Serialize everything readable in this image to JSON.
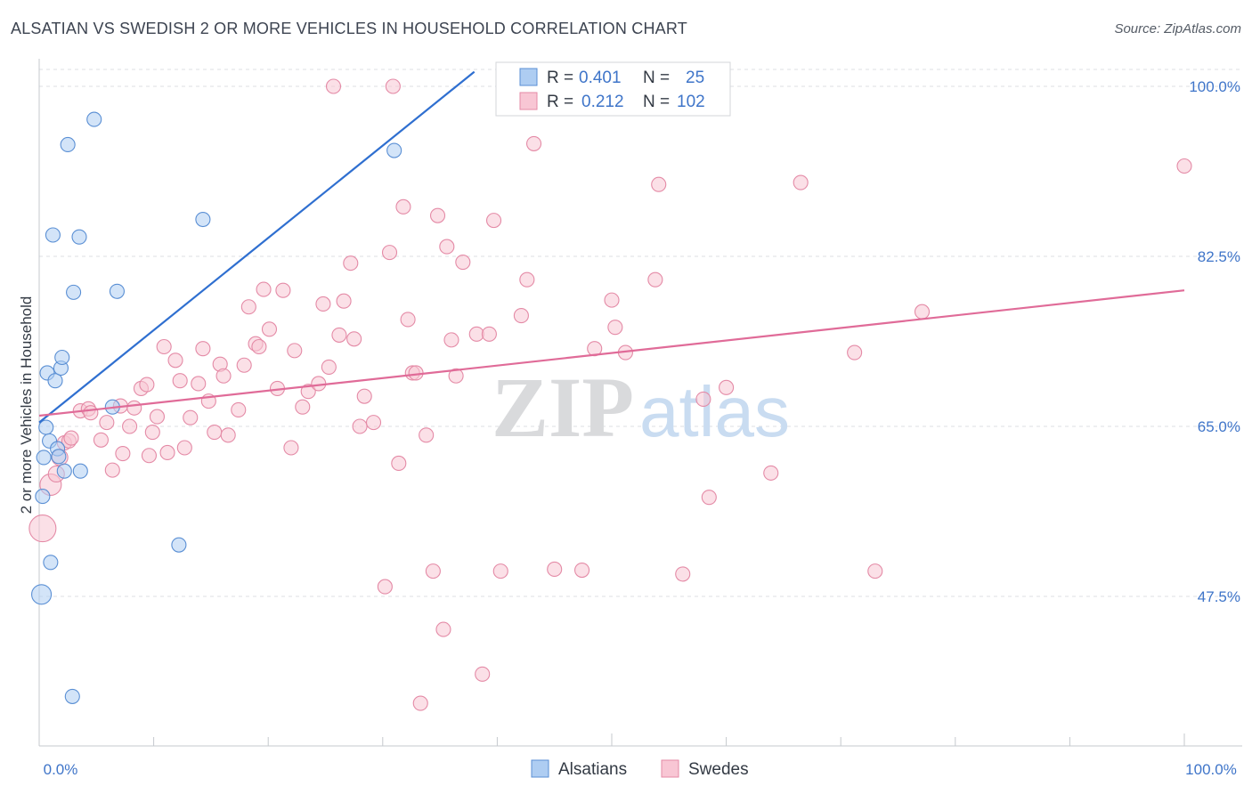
{
  "title": "ALSATIAN VS SWEDISH 2 OR MORE VEHICLES IN HOUSEHOLD CORRELATION CHART",
  "source": "Source: ZipAtlas.com",
  "watermark": {
    "zip": "ZIP",
    "atlas": "atlas"
  },
  "legend": {
    "r_label": "R =",
    "n_label": "N =",
    "rows": [
      {
        "r": "0.401",
        "n": "25",
        "color": "#aecdf2",
        "stroke": "#5a8fd4"
      },
      {
        "r": "0.212",
        "n": "102",
        "color": "#f8c6d4",
        "stroke": "#e48aa6"
      }
    ]
  },
  "chart_data": {
    "type": "scatter",
    "title": "ALSATIAN VS SWEDISH 2 OR MORE VEHICLES IN HOUSEHOLD CORRELATION CHART",
    "xlabel": "",
    "ylabel": "2 or more Vehicles in Household",
    "xlim": [
      0,
      100
    ],
    "ylim": [
      30,
      102
    ],
    "x_tick_labels": [
      "0.0%",
      "100.0%"
    ],
    "y_ticks": [
      47.5,
      65.0,
      82.5,
      100.0
    ],
    "y_tick_labels": [
      "47.5%",
      "65.0%",
      "82.5%",
      "100.0%"
    ],
    "grid": true,
    "legend_position": "top-center",
    "series": [
      {
        "name": "Alsatians",
        "color": "#aecdf2",
        "stroke": "#5a8fd4",
        "line_color": "#2f6fd0",
        "trend": {
          "x": [
            0,
            38
          ],
          "y": [
            65.4,
            101.5
          ]
        },
        "points": [
          [
            0.2,
            47.7
          ],
          [
            0.3,
            57.8
          ],
          [
            0.4,
            61.8
          ],
          [
            0.6,
            64.9
          ],
          [
            0.7,
            70.5
          ],
          [
            0.9,
            63.5
          ],
          [
            1.0,
            51.0
          ],
          [
            1.2,
            84.7
          ],
          [
            1.4,
            69.7
          ],
          [
            1.6,
            62.7
          ],
          [
            1.7,
            61.9
          ],
          [
            1.9,
            71.0
          ],
          [
            2.0,
            72.1
          ],
          [
            2.2,
            60.4
          ],
          [
            2.5,
            94.0
          ],
          [
            2.9,
            37.2
          ],
          [
            3.0,
            78.8
          ],
          [
            3.5,
            84.5
          ],
          [
            3.6,
            60.4
          ],
          [
            4.8,
            96.6
          ],
          [
            6.4,
            67.0
          ],
          [
            6.8,
            78.9
          ],
          [
            12.2,
            52.8
          ],
          [
            14.3,
            86.3
          ],
          [
            31.0,
            93.4
          ]
        ],
        "sizes": [
          22,
          16,
          16,
          16,
          16,
          16,
          16,
          16,
          16,
          16,
          16,
          16,
          16,
          16,
          16,
          16,
          16,
          16,
          16,
          16,
          16,
          16,
          16,
          16,
          16
        ]
      },
      {
        "name": "Swedes",
        "color": "#f8c6d4",
        "stroke": "#e48aa6",
        "line_color": "#e06b98",
        "trend": {
          "x": [
            0,
            100
          ],
          "y": [
            66.1,
            79.0
          ]
        },
        "points": [
          [
            0.3,
            54.5
          ],
          [
            1.0,
            59.0
          ],
          [
            1.5,
            60.1
          ],
          [
            1.8,
            61.8
          ],
          [
            2.2,
            63.3
          ],
          [
            2.6,
            63.5
          ],
          [
            2.8,
            63.8
          ],
          [
            3.6,
            66.6
          ],
          [
            4.3,
            66.8
          ],
          [
            4.5,
            66.4
          ],
          [
            5.4,
            63.6
          ],
          [
            5.9,
            65.4
          ],
          [
            6.4,
            60.5
          ],
          [
            7.1,
            67.1
          ],
          [
            7.3,
            62.2
          ],
          [
            7.9,
            65.0
          ],
          [
            8.3,
            66.9
          ],
          [
            8.9,
            68.9
          ],
          [
            9.4,
            69.3
          ],
          [
            9.6,
            62.0
          ],
          [
            9.9,
            64.4
          ],
          [
            10.3,
            66.0
          ],
          [
            10.9,
            73.2
          ],
          [
            11.2,
            62.3
          ],
          [
            11.9,
            71.8
          ],
          [
            12.3,
            69.7
          ],
          [
            12.7,
            62.8
          ],
          [
            13.2,
            65.9
          ],
          [
            13.9,
            69.4
          ],
          [
            14.3,
            73.0
          ],
          [
            14.8,
            67.6
          ],
          [
            15.3,
            64.4
          ],
          [
            15.8,
            71.4
          ],
          [
            16.1,
            70.2
          ],
          [
            16.5,
            64.1
          ],
          [
            17.4,
            66.7
          ],
          [
            17.9,
            71.3
          ],
          [
            18.3,
            77.3
          ],
          [
            18.9,
            73.5
          ],
          [
            19.2,
            73.2
          ],
          [
            19.6,
            79.1
          ],
          [
            20.1,
            75.0
          ],
          [
            20.8,
            68.9
          ],
          [
            21.3,
            79.0
          ],
          [
            22.0,
            62.8
          ],
          [
            22.3,
            72.8
          ],
          [
            23.0,
            67.0
          ],
          [
            23.5,
            68.6
          ],
          [
            24.4,
            69.4
          ],
          [
            24.8,
            77.6
          ],
          [
            25.3,
            71.1
          ],
          [
            25.7,
            100.0
          ],
          [
            26.2,
            74.4
          ],
          [
            26.6,
            77.9
          ],
          [
            27.2,
            81.8
          ],
          [
            27.5,
            74.0
          ],
          [
            28.0,
            65.0
          ],
          [
            28.4,
            68.1
          ],
          [
            29.2,
            65.4
          ],
          [
            30.2,
            48.5
          ],
          [
            30.6,
            82.9
          ],
          [
            30.9,
            100.0
          ],
          [
            31.4,
            61.2
          ],
          [
            31.8,
            87.6
          ],
          [
            32.2,
            76.0
          ],
          [
            32.6,
            70.5
          ],
          [
            32.9,
            70.5
          ],
          [
            33.3,
            36.5
          ],
          [
            33.8,
            64.1
          ],
          [
            34.4,
            50.1
          ],
          [
            34.8,
            86.7
          ],
          [
            35.3,
            44.1
          ],
          [
            35.6,
            83.5
          ],
          [
            36.0,
            73.9
          ],
          [
            36.4,
            70.2
          ],
          [
            37.0,
            81.9
          ],
          [
            38.2,
            74.5
          ],
          [
            38.7,
            39.5
          ],
          [
            39.3,
            74.5
          ],
          [
            39.7,
            86.2
          ],
          [
            40.3,
            50.1
          ],
          [
            42.1,
            76.4
          ],
          [
            42.6,
            80.1
          ],
          [
            43.2,
            94.1
          ],
          [
            45.0,
            50.3
          ],
          [
            47.4,
            50.2
          ],
          [
            48.5,
            73.0
          ],
          [
            50.0,
            78.0
          ],
          [
            50.3,
            75.2
          ],
          [
            51.2,
            72.6
          ],
          [
            53.8,
            80.1
          ],
          [
            54.1,
            89.9
          ],
          [
            56.2,
            49.8
          ],
          [
            58.0,
            67.8
          ],
          [
            58.5,
            57.7
          ],
          [
            60.0,
            69.0
          ],
          [
            63.9,
            60.2
          ],
          [
            66.5,
            90.1
          ],
          [
            71.2,
            72.6
          ],
          [
            73.0,
            50.1
          ],
          [
            77.1,
            76.8
          ],
          [
            100.0,
            91.8
          ]
        ],
        "sizes": [
          30,
          24,
          18,
          18,
          16,
          16,
          16,
          16,
          16,
          16,
          16,
          16,
          16,
          16,
          16,
          16,
          16,
          16,
          16,
          16,
          16,
          16,
          16,
          16,
          16,
          16,
          16,
          16,
          16,
          16,
          16,
          16,
          16,
          16,
          16,
          16,
          16,
          16,
          16,
          16,
          16,
          16,
          16,
          16,
          16,
          16,
          16,
          16,
          16,
          16,
          16,
          16,
          16,
          16,
          16,
          16,
          16,
          16,
          16,
          16,
          16,
          16,
          16,
          16,
          16,
          16,
          16,
          16,
          16,
          16,
          16,
          16,
          16,
          16,
          16,
          16,
          16,
          16,
          16,
          16,
          16,
          16,
          16,
          16,
          16,
          16,
          16,
          16,
          16,
          16,
          16,
          16,
          16,
          16,
          16,
          16,
          16,
          16,
          16,
          16,
          16,
          16
        ]
      }
    ]
  }
}
